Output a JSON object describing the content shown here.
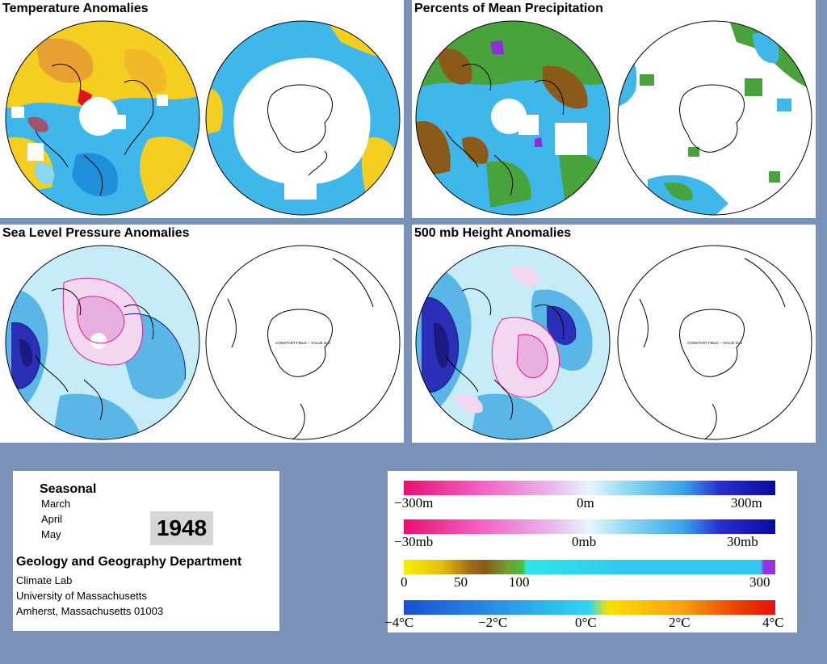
{
  "panels": {
    "temperature": {
      "title": "Temperature Anomalies"
    },
    "precipitation": {
      "title": "Percents of Mean Precipitation"
    },
    "slp": {
      "title": "Sea Level Pressure Anomalies",
      "constant_note": "CONSTANT FIELD -- VALUE IS 0"
    },
    "height500": {
      "title": "500 mb Height Anomalies",
      "constant_note": "CONSTANT FIELD -- VALUE IS 0"
    }
  },
  "info": {
    "period": "Seasonal",
    "months": [
      "March",
      "April",
      "May"
    ],
    "year": "1948",
    "department": "Geology and Geography Department",
    "address": [
      "Climate Lab",
      "University of Massachusetts",
      "Amherst, Massachusetts 01003"
    ]
  },
  "legend": {
    "height_scale": {
      "labels": [
        "−300m",
        "0m",
        "300m"
      ]
    },
    "pressure_scale": {
      "labels": [
        "−30mb",
        "0mb",
        "30mb"
      ]
    },
    "precip_scale": {
      "labels": [
        "0",
        "50",
        "100",
        "300"
      ]
    },
    "temp_scale": {
      "labels": [
        "−4°C",
        "−2°C",
        "0°C",
        "2°C",
        "4°C"
      ]
    }
  },
  "colors": {
    "background": "#7b92b8",
    "cold": "#3fb7ea",
    "warm": "#f4cf21",
    "hot": "#e0121a",
    "dry": "#8a5a18",
    "wet": "#48a33c",
    "low": "#2a2fb5",
    "high": "#e41a8a"
  }
}
